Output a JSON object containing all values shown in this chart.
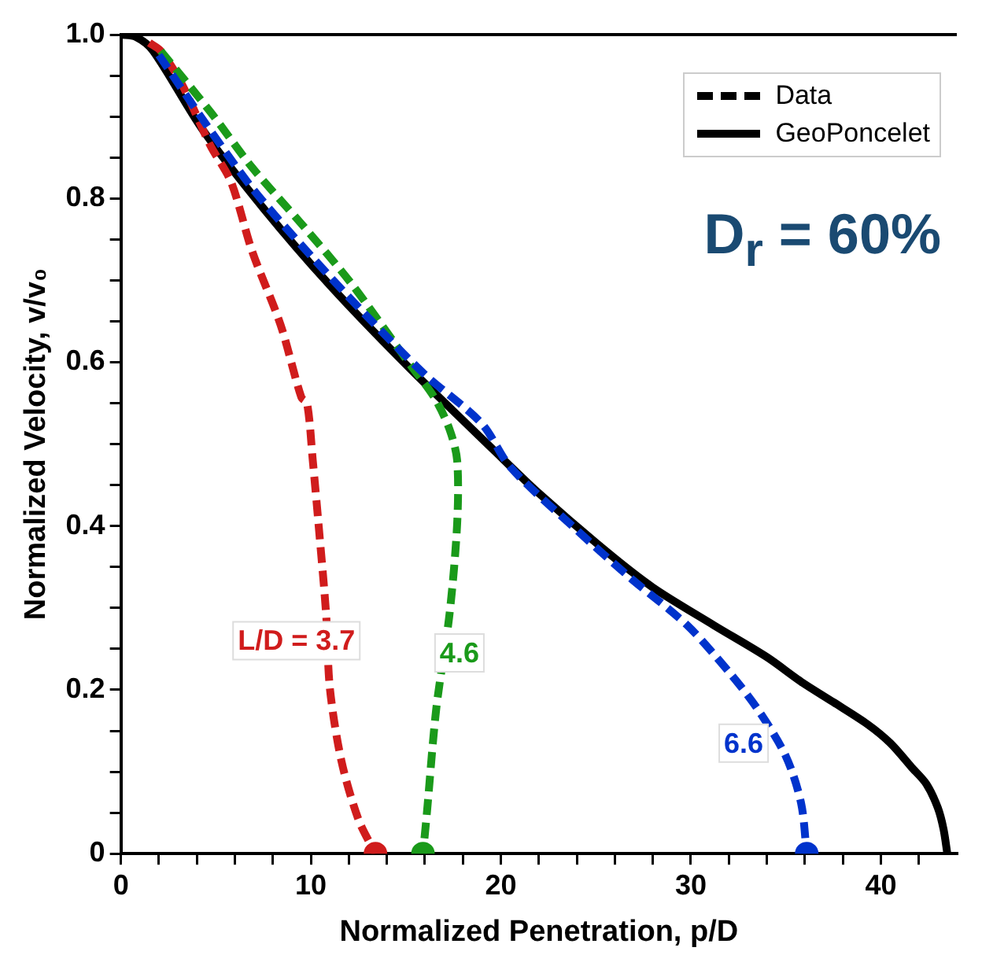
{
  "chart_data": {
    "type": "line",
    "xlabel": "Normalized Penetration, p/D",
    "ylabel": "Normalized Velocity, v/v₀",
    "xlim": [
      0,
      44
    ],
    "xticks": [
      0,
      {
        "value": 2,
        "label": null
      },
      {
        "value": 4,
        "label": null
      },
      {
        "value": 6,
        "label": null
      },
      {
        "value": 8,
        "label": null
      },
      10,
      {
        "value": 12,
        "label": null
      },
      {
        "value": 14,
        "label": null
      },
      {
        "value": 16,
        "label": null
      },
      {
        "value": 18,
        "label": null
      },
      20,
      {
        "value": 22,
        "label": null
      },
      {
        "value": 24,
        "label": null
      },
      {
        "value": 26,
        "label": null
      },
      {
        "value": 28,
        "label": null
      },
      30,
      {
        "value": 32,
        "label": null
      },
      {
        "value": 34,
        "label": null
      },
      {
        "value": 36,
        "label": null
      },
      {
        "value": 38,
        "label": null
      },
      40,
      {
        "value": 42,
        "label": null
      }
    ],
    "ylim": [
      0,
      1
    ],
    "yticks": [
      0,
      {
        "value": 0.05,
        "label": null
      },
      {
        "value": 0.1,
        "label": null
      },
      {
        "value": 0.15,
        "label": null
      },
      0.2,
      {
        "value": 0.25,
        "label": null
      },
      {
        "value": 0.3,
        "label": null
      },
      {
        "value": 0.35,
        "label": null
      },
      0.4,
      {
        "value": 0.45,
        "label": null
      },
      {
        "value": 0.5,
        "label": null
      },
      {
        "value": 0.55,
        "label": null
      },
      0.6,
      {
        "value": 0.65,
        "label": null
      },
      {
        "value": 0.7,
        "label": null
      },
      {
        "value": 0.75,
        "label": null
      },
      0.8,
      {
        "value": 0.85,
        "label": null
      },
      {
        "value": 0.9,
        "label": null
      },
      {
        "value": 0.95,
        "label": null
      },
      {
        "value": 1,
        "label": "1.0"
      }
    ],
    "grid": false,
    "legend": "top right",
    "series": [
      {
        "name": "GeoPoncelet",
        "color": "#000000",
        "line_style": "solid",
        "x": [
          0,
          0.8,
          1.7,
          4.3,
          7.5,
          11.0,
          15.1,
          19.7,
          22.0,
          25.5,
          28.0,
          31.2,
          34.0,
          35.8,
          37.5,
          39.3,
          40.5,
          41.6,
          42.4,
          43.0,
          43.3,
          43.5
        ],
        "values": [
          1.0,
          0.997,
          0.98,
          0.884,
          0.788,
          0.694,
          0.595,
          0.491,
          0.44,
          0.37,
          0.325,
          0.279,
          0.24,
          0.21,
          0.185,
          0.158,
          0.135,
          0.106,
          0.085,
          0.056,
          0.03,
          0
        ]
      },
      {
        "name": "Data",
        "color": "#000000",
        "line_style": "dashed"
      },
      {
        "color": "#d01c1c",
        "line_style": "dashed",
        "x": [
          1.5,
          2.1,
          3.2,
          4.7,
          5.8,
          6.9,
          8.4,
          9.5,
          9.8,
          10.1,
          10.4,
          10.8,
          11.0,
          11.6,
          12.5,
          13.4
        ],
        "values": [
          0.99,
          0.98,
          0.94,
          0.865,
          0.82,
          0.736,
          0.646,
          0.557,
          0.55,
          0.48,
          0.403,
          0.293,
          0.202,
          0.114,
          0.042,
          0
        ]
      },
      {
        "color": "#1a9a1a",
        "line_style": "dashed",
        "x": [
          2.1,
          4.7,
          6.9,
          9.5,
          12.1,
          15.1,
          16.5,
          17.3,
          17.7,
          17.7,
          17.3,
          16.6,
          16.1,
          15.9
        ],
        "values": [
          0.98,
          0.906,
          0.838,
          0.769,
          0.697,
          0.601,
          0.557,
          0.518,
          0.48,
          0.403,
          0.293,
          0.177,
          0.048,
          0
        ]
      },
      {
        "color": "#0033cc",
        "line_style": "dashed",
        "x": [
          2.0,
          4.5,
          7.0,
          10.0,
          13.0,
          16.0,
          19.0,
          20.5,
          24.0,
          26.8,
          29.8,
          32.0,
          33.5,
          35.0,
          35.8,
          36.1
        ],
        "values": [
          0.975,
          0.89,
          0.81,
          0.73,
          0.655,
          0.585,
          0.525,
          0.472,
          0.395,
          0.337,
          0.279,
          0.222,
          0.177,
          0.119,
          0.062,
          0
        ]
      },
      {
        "type": "scatter",
        "marker": "circle",
        "x": [
          13.4,
          15.9,
          36.1
        ],
        "values": [
          0,
          0,
          0
        ],
        "colors": [
          "#d01c1c",
          "#1a9a1a",
          "#0033cc"
        ]
      }
    ],
    "annotations": [
      "L/D = 3.7",
      "4.6",
      "6.6",
      "D$_{r}$ = 60%"
    ]
  }
}
